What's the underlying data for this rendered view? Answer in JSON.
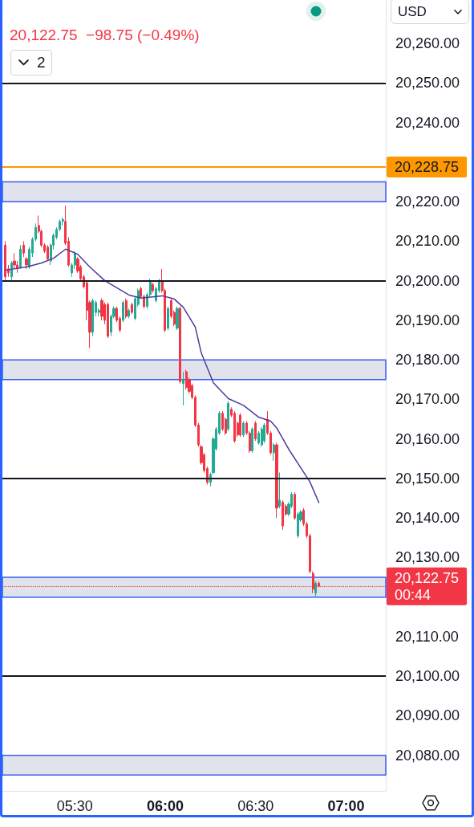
{
  "chart_data": {
    "type": "candlestick",
    "subtitle": "20,122.75  −98.75 (−0.49%)",
    "ylabel": "USD",
    "annotations": [
      "2"
    ],
    "xlim": [
      5.1,
      7.22
    ],
    "xticks": [
      {
        "value": 5.5,
        "label": "05:30"
      },
      {
        "value": 6,
        "label": "06:00"
      },
      {
        "value": 6.5,
        "label": "06:30"
      },
      {
        "value": 7,
        "label": "07:00"
      }
    ],
    "ylim": [
      20071,
      20271
    ],
    "yticks": [
      {
        "value": 20080,
        "label": "20,080.00"
      },
      {
        "value": 20090,
        "label": "20,090.00"
      },
      {
        "value": 20100,
        "label": "20,100.00"
      },
      {
        "value": 20110,
        "label": "20,110.00"
      },
      {
        "value": 20130,
        "label": "20,130.00"
      },
      {
        "value": 20140,
        "label": "20,140.00"
      },
      {
        "value": 20150,
        "label": "20,150.00"
      },
      {
        "value": 20160,
        "label": "20,160.00"
      },
      {
        "value": 20170,
        "label": "20,170.00"
      },
      {
        "value": 20180,
        "label": "20,180.00"
      },
      {
        "value": 20190,
        "label": "20,190.00"
      },
      {
        "value": 20200,
        "label": "20,200.00"
      },
      {
        "value": 20210,
        "label": "20,210.00"
      },
      {
        "value": 20220,
        "label": "20,220.00"
      },
      {
        "value": 20240,
        "label": "20,240.00"
      },
      {
        "value": 20250,
        "label": "20,250.00"
      },
      {
        "value": 20260,
        "label": "20,260.00"
      }
    ],
    "series": [
      {
        "x": [
          5.1167,
          5.1333,
          5.15,
          5.1667,
          5.1833,
          5.2,
          5.2167,
          5.2333,
          5.25,
          5.2667,
          5.2833,
          5.3,
          5.3167,
          5.3333,
          5.35,
          5.3667,
          5.3833,
          5.4,
          5.4167,
          5.4333,
          5.45,
          5.4667,
          5.4833,
          5.5,
          5.5167,
          5.5333,
          5.55,
          5.5667,
          5.5833,
          5.6,
          5.6167,
          5.6333,
          5.65,
          5.6667,
          5.6833,
          5.7,
          5.7167,
          5.7333,
          5.75,
          5.7667,
          5.7833,
          5.8,
          5.8167,
          5.8333,
          5.85,
          5.8667,
          5.8833,
          5.9,
          5.9167,
          5.9333,
          5.95,
          5.9667,
          5.9833,
          6,
          6.0167,
          6.0333,
          6.05,
          6.0667,
          6.0833,
          6.1,
          6.1167,
          6.1333,
          6.15,
          6.1667,
          6.1833,
          6.2,
          6.2167,
          6.2333,
          6.25,
          6.2667,
          6.2833,
          6.3,
          6.3167,
          6.3333,
          6.35,
          6.3667,
          6.3833,
          6.4,
          6.4167,
          6.4333,
          6.45,
          6.4667,
          6.4833,
          6.5,
          6.5167,
          6.5333,
          6.55,
          6.5667,
          6.5833,
          6.6,
          6.6167,
          6.6333,
          6.65,
          6.6667,
          6.6833,
          6.7,
          6.7167,
          6.7333,
          6.75,
          6.7667,
          6.7833,
          6.8,
          6.8167,
          6.8333,
          6.85
        ],
        "ohlc": [
          [
            20209,
            20210,
            20200,
            20201
          ],
          [
            20203,
            20204,
            20201,
            20202
          ],
          [
            20201,
            20205,
            20200,
            20204.5
          ],
          [
            20205,
            20207,
            20203,
            20204
          ],
          [
            20204,
            20205,
            20202,
            20203
          ],
          [
            20203.5,
            20209,
            20203,
            20208
          ],
          [
            20209,
            20210,
            20206,
            20207
          ],
          [
            20205.5,
            20206,
            20203,
            20204
          ],
          [
            20203.5,
            20208.5,
            20203,
            20208
          ],
          [
            20207,
            20211,
            20206,
            20210.5
          ],
          [
            20210.5,
            20214.5,
            20210,
            20213.5
          ],
          [
            20214,
            20216.5,
            20212,
            20212.5
          ],
          [
            20212.5,
            20213,
            20208.5,
            20209
          ],
          [
            20209,
            20209.5,
            20207,
            20207.5
          ],
          [
            20208.5,
            20209,
            20205,
            20205.5
          ],
          [
            20205,
            20209.5,
            20204,
            20209
          ],
          [
            20209,
            20212,
            20208,
            20211.5
          ],
          [
            20211,
            20213.5,
            20210.5,
            20213
          ],
          [
            20213,
            20215.5,
            20212.5,
            20215
          ],
          [
            20215,
            20216,
            20214,
            20215.5
          ],
          [
            20215,
            20219,
            20209,
            20209.5
          ],
          [
            20210,
            20211,
            20203.5,
            20204
          ],
          [
            20202,
            20204.5,
            20201,
            20204
          ],
          [
            20204,
            20207.5,
            20203,
            20207
          ],
          [
            20205.5,
            20206,
            20202,
            20202.5
          ],
          [
            20203.5,
            20204,
            20200,
            20200.5
          ],
          [
            20201,
            20201.5,
            20198,
            20198.5
          ],
          [
            20199.5,
            20200,
            20190,
            20192.5
          ],
          [
            20194.5,
            20195,
            20183,
            20187
          ],
          [
            20187,
            20195.5,
            20186,
            20195
          ],
          [
            20192,
            20195,
            20191,
            20194.5
          ],
          [
            20192,
            20193,
            20191,
            20192.5
          ],
          [
            20195,
            20195.5,
            20190,
            20191
          ],
          [
            20194,
            20194.5,
            20189,
            20190
          ],
          [
            20194,
            20194.5,
            20185.5,
            20186
          ],
          [
            20187,
            20191.5,
            20186,
            20191
          ],
          [
            20191,
            20193.5,
            20190.5,
            20193
          ],
          [
            20193,
            20193.5,
            20189.5,
            20190
          ],
          [
            20190.5,
            20191,
            20187,
            20187.5
          ],
          [
            20190,
            20195,
            20189.5,
            20194.5
          ],
          [
            20195,
            20195.5,
            20190.5,
            20191
          ],
          [
            20191,
            20193,
            20190.5,
            20192.5
          ],
          [
            20194,
            20194.5,
            20191.5,
            20192
          ],
          [
            20190.5,
            20196,
            20190,
            20195.5
          ],
          [
            20194,
            20198,
            20193.5,
            20197.5
          ],
          [
            20198,
            20198.5,
            20195.5,
            20196
          ],
          [
            20196,
            20196.5,
            20193,
            20193.5
          ],
          [
            20193.5,
            20197,
            20193,
            20196.5
          ],
          [
            20196.5,
            20200.5,
            20196,
            20200
          ],
          [
            20199,
            20199.5,
            20197,
            20197.5
          ],
          [
            20195,
            20198.5,
            20194.5,
            20198
          ],
          [
            20197.5,
            20200.5,
            20197,
            20200
          ],
          [
            20200,
            20203,
            20197,
            20197.5
          ],
          [
            20197.5,
            20198,
            20187,
            20187.5
          ],
          [
            20188,
            20193.5,
            20187.5,
            20193
          ],
          [
            20195,
            20195.5,
            20190.5,
            20191
          ],
          [
            20192,
            20192.5,
            20188.5,
            20189
          ],
          [
            20188,
            20193.5,
            20187.5,
            20193
          ],
          [
            20193,
            20193.5,
            20174,
            20174.5
          ],
          [
            20174,
            20177,
            20168.5,
            20175
          ],
          [
            20177,
            20177.5,
            20172.5,
            20173
          ],
          [
            20175,
            20175.5,
            20171.5,
            20172
          ],
          [
            20173.5,
            20174,
            20170,
            20170.5
          ],
          [
            20170.5,
            20171,
            20163,
            20163.5
          ],
          [
            20163.5,
            20164,
            20158,
            20158.5
          ],
          [
            20158,
            20158.5,
            20153.5,
            20154
          ],
          [
            20156,
            20156.5,
            20151.5,
            20152
          ],
          [
            20152.5,
            20153,
            20148.5,
            20149
          ],
          [
            20149,
            20151.5,
            20148,
            20151
          ],
          [
            20151.5,
            20160.5,
            20151,
            20160
          ],
          [
            20157.5,
            20163,
            20157,
            20162.5
          ],
          [
            20161.5,
            20167,
            20161,
            20166.5
          ],
          [
            20166.5,
            20167,
            20162,
            20162.5
          ],
          [
            20165,
            20165.5,
            20161,
            20161.5
          ],
          [
            20162.5,
            20169.5,
            20162,
            20169
          ],
          [
            20167.5,
            20168,
            20165.5,
            20166
          ],
          [
            20166.5,
            20167,
            20159,
            20159.5
          ],
          [
            20164,
            20164.5,
            20160.5,
            20161
          ],
          [
            20166,
            20166.5,
            20160.5,
            20161
          ],
          [
            20161,
            20164.5,
            20160.5,
            20164
          ],
          [
            20164,
            20164.5,
            20161,
            20161.5
          ],
          [
            20161.5,
            20162,
            20156.5,
            20157
          ],
          [
            20157,
            20163,
            20156.5,
            20162.5
          ],
          [
            20164,
            20164.5,
            20159.5,
            20160
          ],
          [
            20159,
            20162,
            20158.5,
            20161.5
          ],
          [
            20158.5,
            20163,
            20158,
            20162.5
          ],
          [
            20159.5,
            20164,
            20159,
            20163.5
          ],
          [
            20165,
            20167,
            20161,
            20161.5
          ],
          [
            20161.5,
            20162,
            20156,
            20156.5
          ],
          [
            20156.5,
            20159,
            20154.5,
            20158.5
          ],
          [
            20158.5,
            20159,
            20140,
            20142.5
          ],
          [
            20143,
            20151.5,
            20142.5,
            20144.5
          ],
          [
            20144,
            20144.5,
            20137,
            20138
          ],
          [
            20143,
            20143.5,
            20140.5,
            20141
          ],
          [
            20141,
            20144,
            20140.5,
            20143.5
          ],
          [
            20143,
            20146.5,
            20142.5,
            20146
          ],
          [
            20146,
            20146.5,
            20139.5,
            20140
          ],
          [
            20135.5,
            20141.5,
            20135,
            20141
          ],
          [
            20139.5,
            20142,
            20139,
            20141.5
          ],
          [
            20142,
            20142.5,
            20138,
            20138.5
          ],
          [
            20138.5,
            20139,
            20135,
            20135.5
          ],
          [
            20135.5,
            20136,
            20126,
            20126.5
          ],
          [
            20126,
            20126.5,
            20121,
            20122
          ],
          [
            20121,
            20124,
            20120,
            20123.5
          ],
          [
            20123.5,
            20124,
            20122.5,
            20122.75
          ]
        ],
        "colors": [
          "#f23645",
          "#f23645",
          "#22ab94",
          "#f23645",
          "#f23645",
          "#22ab94",
          "#f23645",
          "#f23645",
          "#22ab94",
          "#22ab94",
          "#22ab94",
          "#f23645",
          "#f23645",
          "#f23645",
          "#f23645",
          "#22ab94",
          "#22ab94",
          "#22ab94",
          "#22ab94",
          "#22ab94",
          "#f23645",
          "#f23645",
          "#22ab94",
          "#22ab94",
          "#f23645",
          "#f23645",
          "#f23645",
          "#f23645",
          "#f23645",
          "#22ab94",
          "#22ab94",
          "#22ab94",
          "#f23645",
          "#f23645",
          "#f23645",
          "#22ab94",
          "#22ab94",
          "#f23645",
          "#f23645",
          "#22ab94",
          "#f23645",
          "#22ab94",
          "#f23645",
          "#22ab94",
          "#22ab94",
          "#f23645",
          "#f23645",
          "#22ab94",
          "#22ab94",
          "#f23645",
          "#22ab94",
          "#22ab94",
          "#f23645",
          "#f23645",
          "#22ab94",
          "#f23645",
          "#f23645",
          "#22ab94",
          "#f23645",
          "#22ab94",
          "#f23645",
          "#f23645",
          "#f23645",
          "#f23645",
          "#f23645",
          "#f23645",
          "#f23645",
          "#f23645",
          "#22ab94",
          "#22ab94",
          "#22ab94",
          "#22ab94",
          "#f23645",
          "#f23645",
          "#22ab94",
          "#f23645",
          "#f23645",
          "#f23645",
          "#f23645",
          "#22ab94",
          "#f23645",
          "#f23645",
          "#22ab94",
          "#f23645",
          "#22ab94",
          "#22ab94",
          "#22ab94",
          "#f23645",
          "#f23645",
          "#22ab94",
          "#f23645",
          "#22ab94",
          "#f23645",
          "#f23645",
          "#22ab94",
          "#22ab94",
          "#f23645",
          "#22ab94",
          "#22ab94",
          "#f23645",
          "#f23645",
          "#f23645",
          "#f23645",
          "#22ab94",
          "#f23645"
        ]
      },
      {
        "type": "line",
        "color": "#4e3a9f",
        "x": [
          5.1167,
          5.2333,
          5.3167,
          5.3833,
          5.45,
          5.5167,
          5.5833,
          5.6667,
          5.8,
          5.8667,
          5.9833,
          6.05,
          6.1,
          6.1667,
          6.2,
          6.2667,
          6.35,
          6.4333,
          6.5167,
          6.5833,
          6.6167,
          6.6833,
          6.75,
          6.8,
          6.85
        ],
        "values": [
          20202.7,
          20203.5,
          20204.5,
          20205.7,
          20208,
          20206.7,
          20203.5,
          20200,
          20196.4,
          20195.6,
          20196.2,
          20195.4,
          20193.3,
          20188.3,
          20181.7,
          20174.2,
          20170.2,
          20168.5,
          20165.5,
          20164.5,
          20162.8,
          20157.4,
          20152.7,
          20149.2,
          20143.9
        ]
      }
    ],
    "ref_lines": [
      {
        "axis": "y",
        "value": 20250,
        "color": "#131722"
      },
      {
        "axis": "y",
        "value": 20228.75,
        "label": "20,228.75",
        "color": "#ff9800"
      },
      {
        "axis": "y",
        "value": 20200,
        "color": "#131722"
      },
      {
        "axis": "y",
        "value": 20150,
        "color": "#131722"
      },
      {
        "axis": "y",
        "value": 20122.75,
        "label": "20,122.75\n00:44",
        "color": "#f23645",
        "line_style": "dotted"
      },
      {
        "axis": "y",
        "value": 20100,
        "color": "#131722"
      }
    ],
    "bands": [
      {
        "axis": "y",
        "from": 20220,
        "to": 20225,
        "color": "#e0e3eb"
      },
      {
        "axis": "y",
        "from": 20175,
        "to": 20180,
        "color": "#e0e3eb"
      },
      {
        "axis": "y",
        "from": 20120,
        "to": 20125,
        "color": "#e0e3eb"
      },
      {
        "axis": "y",
        "from": 20075,
        "to": 20080,
        "color": "#e0e3eb"
      }
    ]
  }
}
